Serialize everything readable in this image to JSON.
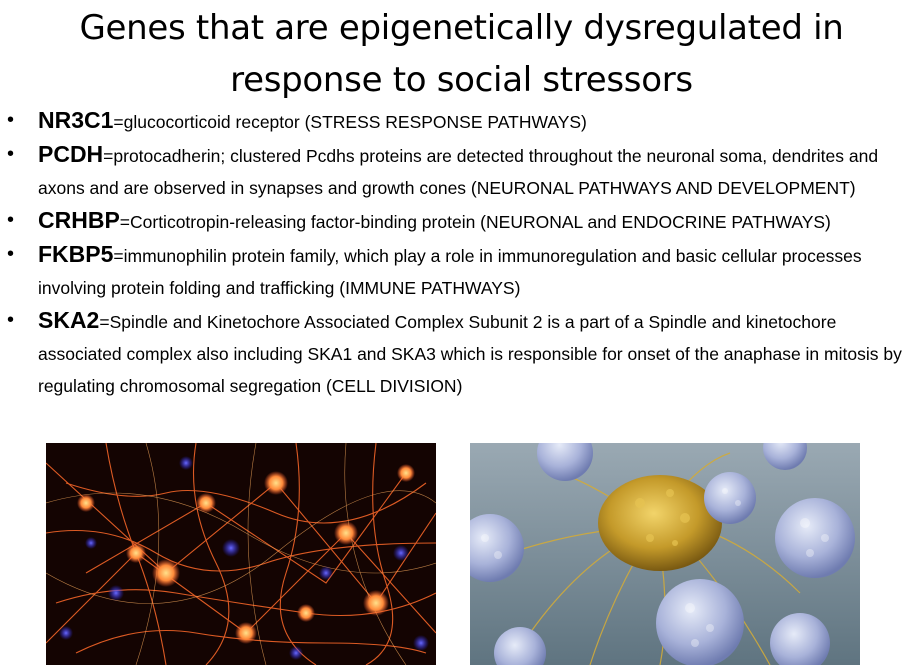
{
  "slide": {
    "title_line1": "Genes that are epigenetically dysregulated in",
    "title_line2": "response to social stressors",
    "bullets": [
      {
        "gene": "NR3C1",
        "text": "=glucocorticoid receptor (STRESS RESPONSE PATHWAYS)"
      },
      {
        "gene": "PCDH",
        "text": "=protocadherin; clustered Pcdhs proteins are detected throughout the neuronal soma, dendrites and axons and are observed in synapses and growth cones (NEURONAL PATHWAYS AND DEVELOPMENT)"
      },
      {
        "gene": "CRHBP",
        "text": "=Corticotropin-releasing factor-binding protein (NEURONAL and ENDOCRINE PATHWAYS)"
      },
      {
        "gene": "FKBP5",
        "text": "=immunophilin protein family, which play a role in immunoregulation and basic cellular processes involving protein folding and trafficking (IMMUNE PATHWAYS)"
      },
      {
        "gene": "SKA2",
        "text": "=Spindle and Kinetochore Associated Complex Subunit 2 is a part of a Spindle and kinetochore associated complex also including SKA1 and SKA3 which is responsible for onset of the anaphase in mitosis by regulating chromosomal segregation (CELL DIVISION)"
      }
    ],
    "images": [
      {
        "icon": "neuron-network-micrograph",
        "colors": [
          "#ff7a2a",
          "#ffd35a",
          "#3b3bff",
          "#140402"
        ]
      },
      {
        "icon": "immune-cells-attacking-cancer-cell",
        "colors": [
          "#c9a53a",
          "#aab3d8",
          "#6f8591"
        ]
      }
    ]
  }
}
